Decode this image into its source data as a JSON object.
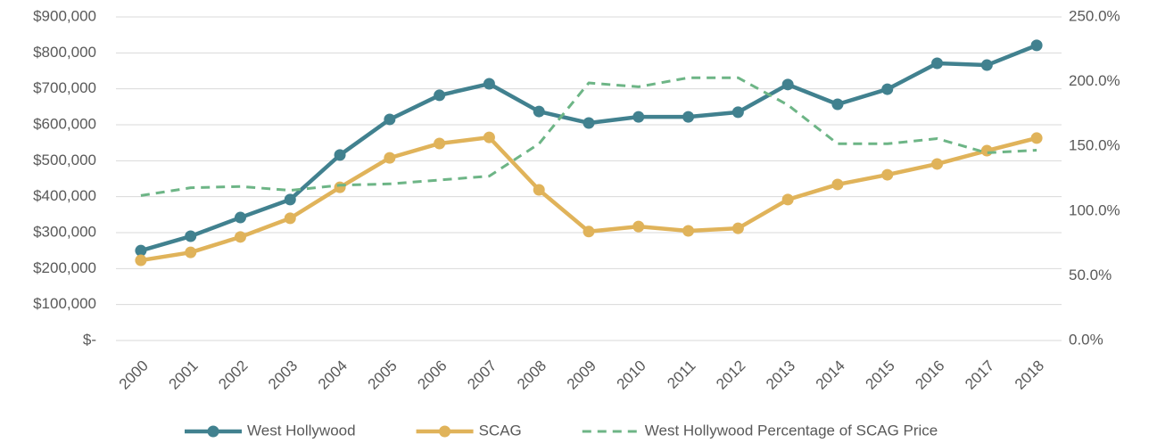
{
  "chart_data": {
    "type": "line",
    "categories": [
      "2000",
      "2001",
      "2002",
      "2003",
      "2004",
      "2005",
      "2006",
      "2007",
      "2008",
      "2009",
      "2010",
      "2011",
      "2012",
      "2013",
      "2014",
      "2015",
      "2016",
      "2017",
      "2018"
    ],
    "series": [
      {
        "name": "West Hollywood",
        "color": "#41818f",
        "marker": true,
        "values": [
          250000,
          290000,
          342000,
          392000,
          516000,
          615000,
          682000,
          714000,
          637000,
          605000,
          622000,
          622000,
          635000,
          712000,
          657000,
          699000,
          771000,
          766000,
          821000
        ]
      },
      {
        "name": "SCAG",
        "color": "#e0b35a",
        "marker": true,
        "values": [
          223000,
          245000,
          288000,
          340000,
          426000,
          508000,
          548000,
          565000,
          419000,
          303000,
          317000,
          305000,
          312000,
          392000,
          434000,
          461000,
          491000,
          528000,
          563000
        ]
      },
      {
        "name": "West Hollywood Percentage of SCAG Price",
        "color": "#6db586",
        "dashed": true,
        "axis": "y2",
        "values": [
          112,
          118,
          119,
          116,
          120,
          121,
          124,
          127,
          152,
          199,
          196,
          203,
          203,
          182,
          152,
          152,
          156,
          145,
          147
        ]
      }
    ],
    "ylim": [
      0,
      900000
    ],
    "yticks": [
      {
        "value": 0,
        "label": "$-"
      },
      {
        "value": 100000,
        "label": "$100,000"
      },
      {
        "value": 200000,
        "label": "$200,000"
      },
      {
        "value": 300000,
        "label": "$300,000"
      },
      {
        "value": 400000,
        "label": "$400,000"
      },
      {
        "value": 500000,
        "label": "$500,000"
      },
      {
        "value": 600000,
        "label": "$600,000"
      },
      {
        "value": 700000,
        "label": "$700,000"
      },
      {
        "value": 800000,
        "label": "$800,000"
      },
      {
        "value": 900000,
        "label": "$900,000"
      }
    ],
    "y2lim": [
      0,
      250
    ],
    "y2ticks": [
      {
        "value": 0,
        "label": "0.0%"
      },
      {
        "value": 50,
        "label": "50.0%"
      },
      {
        "value": 100,
        "label": "100.0%"
      },
      {
        "value": 150,
        "label": "150.0%"
      },
      {
        "value": 200,
        "label": "200.0%"
      },
      {
        "value": 250,
        "label": "250.0%"
      }
    ],
    "grid": true,
    "legend": "bottom"
  }
}
